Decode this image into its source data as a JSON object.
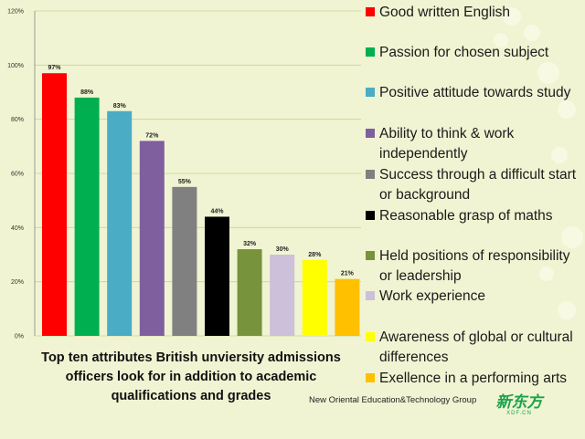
{
  "chart_data": {
    "type": "bar",
    "categories": [
      "Good written English",
      "Passion for chosen subject",
      "Positive attitude towards study",
      "Ability to think & work independently",
      "Success through a difficult start or background",
      "Reasonable grasp of maths",
      "Held positions of responsibility or leadership",
      "Work experience",
      "Awareness of global or cultural differences",
      "Exellence in a performing arts"
    ],
    "values": [
      97,
      88,
      83,
      72,
      55,
      44,
      32,
      30,
      28,
      21
    ],
    "data_labels": [
      "97%",
      "88%",
      "83%",
      "72%",
      "55%",
      "44%",
      "32%",
      "30%",
      "28%",
      "21%"
    ],
    "colors": [
      "#ff0000",
      "#00b050",
      "#4bacc6",
      "#7f5f9e",
      "#808080",
      "#000000",
      "#77933c",
      "#ccc0da",
      "#ffff00",
      "#ffc000"
    ],
    "y_ticks": [
      "0%",
      "20%",
      "40%",
      "60%",
      "80%",
      "100%",
      "120%"
    ],
    "ylim": [
      0,
      120
    ],
    "grid": true,
    "legend_position": "right",
    "caption": "Top ten attributes British unviersity admissions officers look for in addition to academic qualifications and grades"
  },
  "footer": {
    "company": "New Oriental Education&Technology Group",
    "logo_main": "新东方",
    "logo_sub": "XDF.CN"
  }
}
